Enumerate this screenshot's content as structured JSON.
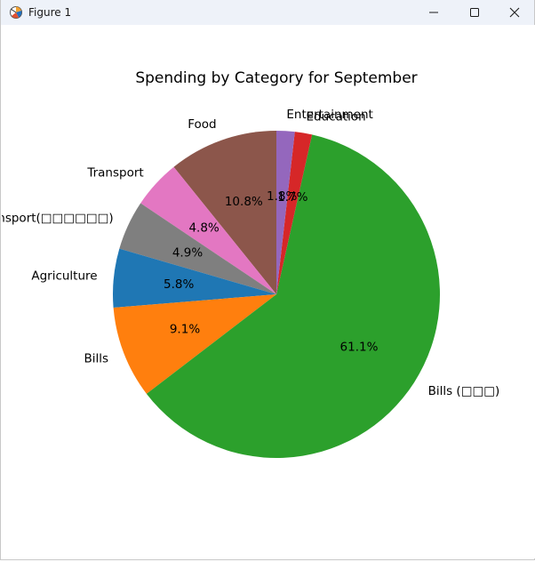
{
  "window": {
    "title": "Figure 1",
    "icons": [
      "matplotlib-app-icon",
      "minimize-icon",
      "maximize-icon",
      "close-icon"
    ]
  },
  "chart_data": {
    "type": "pie",
    "title": "Spending by Category for September",
    "start_angle_deg": 90,
    "direction": "counterclockwise",
    "slices": [
      {
        "label": "Food",
        "value": 10.8,
        "pct_label": "10.8%",
        "color": "#8c564b"
      },
      {
        "label": "Transport",
        "value": 4.8,
        "pct_label": "4.8%",
        "color": "#e377c2"
      },
      {
        "label": "Transport(□□□□□□)",
        "value": 4.9,
        "pct_label": "4.9%",
        "color": "#7f7f7f"
      },
      {
        "label": "Agriculture",
        "value": 5.8,
        "pct_label": "5.8%",
        "color": "#1f77b4"
      },
      {
        "label": "Bills",
        "value": 9.1,
        "pct_label": "9.1%",
        "color": "#ff7f0e"
      },
      {
        "label": "Bills (□□□)",
        "value": 61.1,
        "pct_label": "61.1%",
        "color": "#2ca02c"
      },
      {
        "label": "Education",
        "value": 1.7,
        "pct_label": "1.7%",
        "color": "#d62728"
      },
      {
        "label": "Entertainment",
        "value": 1.8,
        "pct_label": "1.8%",
        "color": "#9467bd"
      }
    ]
  }
}
